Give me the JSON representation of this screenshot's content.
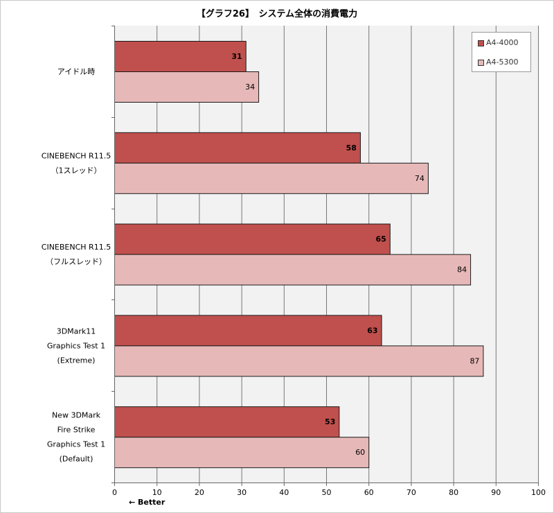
{
  "chart_data": {
    "type": "bar",
    "orientation": "horizontal",
    "title": "【グラフ26】　システム全体の消費電力",
    "categories": [
      [
        "アイドル時"
      ],
      [
        "CINEBENCH R11.5",
        "（1スレッド）"
      ],
      [
        "CINEBENCH R11.5",
        "（フルスレッド）"
      ],
      [
        "3DMark11",
        "Graphics Test 1",
        "(Extreme)"
      ],
      [
        "New 3DMark",
        "Fire Strike",
        "Graphics Test 1",
        "(Default)"
      ]
    ],
    "series": [
      {
        "name": "A4-4000",
        "values": [
          31,
          58,
          65,
          63,
          53
        ],
        "color": "#c0504d",
        "bold_labels": true
      },
      {
        "name": "A4-5300",
        "values": [
          34,
          74,
          84,
          87,
          60
        ],
        "color": "#e6b9b8",
        "bold_labels": false
      }
    ],
    "xlim": [
      0,
      100
    ],
    "xticks": [
      0,
      10,
      20,
      30,
      40,
      50,
      60,
      70,
      80,
      90,
      100
    ],
    "grid": true,
    "legend_position": "top-right",
    "plot_background": "#f2f2f2",
    "gridline_color": "#777777",
    "annotation": "← Better"
  }
}
